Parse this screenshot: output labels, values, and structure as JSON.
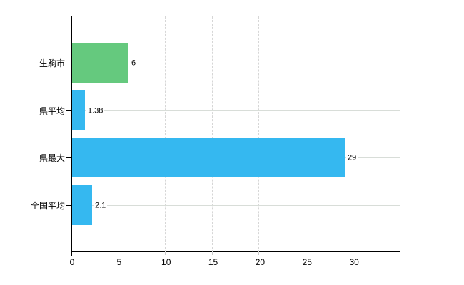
{
  "chart_data": {
    "type": "bar",
    "orientation": "horizontal",
    "title": "",
    "xlabel": "",
    "ylabel": "",
    "categories": [
      "生駒市",
      "県平均",
      "県最大",
      "全国平均"
    ],
    "values": [
      6,
      1.38,
      29,
      2.1
    ],
    "value_labels": [
      "6",
      "1.38",
      "29",
      "2.1"
    ],
    "bar_colors": [
      "#65c97e",
      "#35b8f0",
      "#35b8f0",
      "#35b8f0"
    ],
    "x_ticks": [
      0,
      5,
      10,
      15,
      20,
      25,
      30
    ],
    "x_tick_labels": [
      "0",
      "5",
      "10",
      "15",
      "20",
      "25",
      "30"
    ],
    "xlim": [
      0,
      35
    ],
    "grid": "on",
    "legend_position": "none"
  },
  "colors": {
    "bar_green": "#65c97e",
    "bar_blue": "#35b8f0",
    "grid_line": "#d6d6d6",
    "axis_line": "#000000",
    "background": "#ffffff",
    "text": "#000000"
  }
}
